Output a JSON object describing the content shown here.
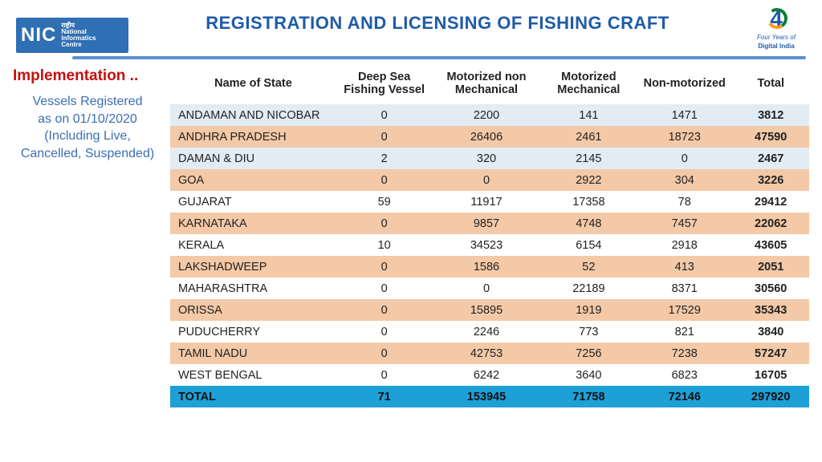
{
  "header": {
    "title": "REGISTRATION AND LICENSING OF FISHING CRAFT",
    "nic_big": "NIC",
    "nic_small_1": "राष्ट्रीय",
    "nic_small_2": "National",
    "nic_small_3": "Informatics",
    "nic_small_4": "Centre",
    "right_logo_num": "4",
    "right_logo_sub": "Four Years of",
    "right_logo_brand": "Digital India"
  },
  "sidebar": {
    "impl": "Implementation ..",
    "sub_l1": "Vessels Registered",
    "sub_l2": "as on 01/10/2020",
    "sub_l3": "(Including Live,",
    "sub_l4": "Cancelled, Suspended)"
  },
  "table": {
    "columns": [
      "Name of State",
      "Deep Sea Fishing Vessel",
      "Motorized non Mechanical",
      "Motorized Mechanical",
      "Non-motorized",
      "Total"
    ],
    "col_widths_pct": [
      26,
      15,
      17,
      15,
      15,
      12
    ],
    "row_color_blue": "#e1ecf4",
    "row_color_orange": "#f4c9a7",
    "row_color_white": "#ffffff",
    "total_row_color": "#1da0d6",
    "header_fontsize": 14.5,
    "cell_fontsize": 14.5,
    "rows": [
      {
        "c": "row-blue",
        "v": [
          "ANDAMAN AND NICOBAR",
          "0",
          "2200",
          "141",
          "1471",
          "3812"
        ]
      },
      {
        "c": "row-orange",
        "v": [
          "ANDHRA PRADESH",
          "0",
          "26406",
          "2461",
          "18723",
          "47590"
        ]
      },
      {
        "c": "row-blue",
        "v": [
          "DAMAN & DIU",
          "2",
          "320",
          "2145",
          "0",
          "2467"
        ]
      },
      {
        "c": "row-orange",
        "v": [
          "GOA",
          "0",
          "0",
          "2922",
          "304",
          "3226"
        ]
      },
      {
        "c": "row-white",
        "v": [
          "GUJARAT",
          "59",
          "11917",
          "17358",
          "78",
          "29412"
        ]
      },
      {
        "c": "row-orange",
        "v": [
          "KARNATAKA",
          "0",
          "9857",
          "4748",
          "7457",
          "22062"
        ]
      },
      {
        "c": "row-white",
        "v": [
          "KERALA",
          "10",
          "34523",
          "6154",
          "2918",
          "43605"
        ]
      },
      {
        "c": "row-orange",
        "v": [
          "LAKSHADWEEP",
          "0",
          "1586",
          "52",
          "413",
          "2051"
        ]
      },
      {
        "c": "row-white",
        "v": [
          "MAHARASHTRA",
          "0",
          "0",
          "22189",
          "8371",
          "30560"
        ]
      },
      {
        "c": "row-orange",
        "v": [
          "ORISSA",
          "0",
          "15895",
          "1919",
          "17529",
          "35343"
        ]
      },
      {
        "c": "row-white",
        "v": [
          "PUDUCHERRY",
          "0",
          "2246",
          "773",
          "821",
          "3840"
        ]
      },
      {
        "c": "row-orange",
        "v": [
          "TAMIL NADU",
          "0",
          "42753",
          "7256",
          "7238",
          "57247"
        ]
      },
      {
        "c": "row-white",
        "v": [
          "WEST BENGAL",
          "0",
          "6242",
          "3640",
          "6823",
          "16705"
        ]
      }
    ],
    "total_row": [
      "TOTAL",
      "71",
      "153945",
      "71758",
      "72146",
      "297920"
    ]
  },
  "colors": {
    "title": "#1f5ba8",
    "rule": "#5b8fd0",
    "impl": "#c61010",
    "subhead": "#3b6fb3",
    "nic_bg": "#2f6fb3"
  }
}
